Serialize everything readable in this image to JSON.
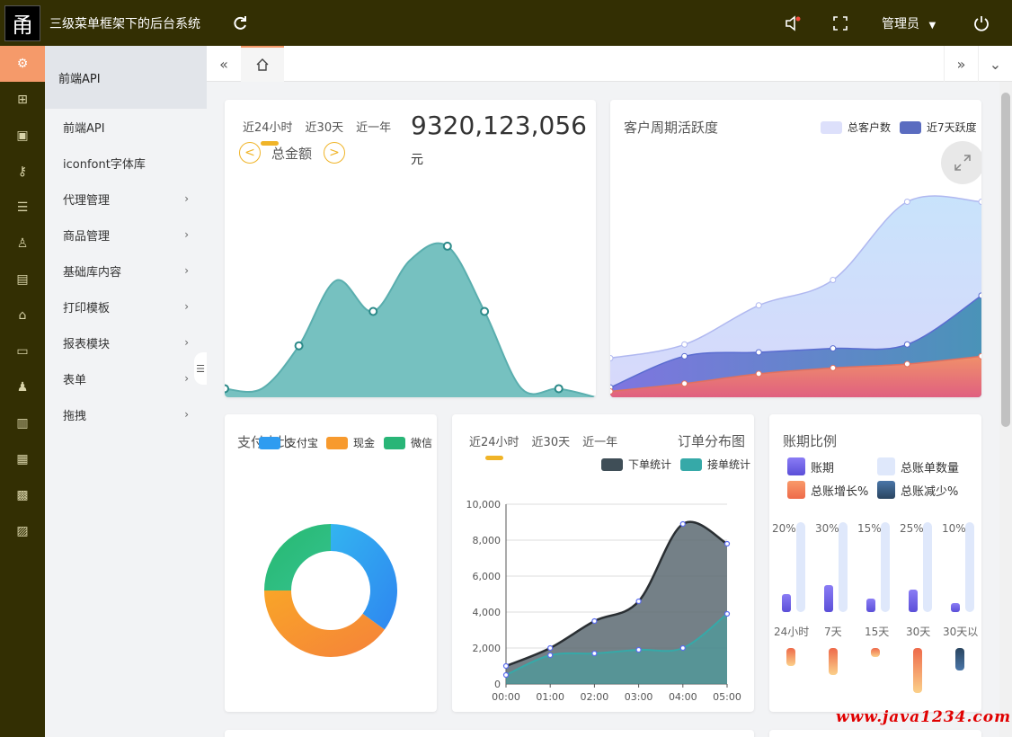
{
  "app": {
    "logo_char": "甬",
    "title": "三级菜单框架下的后台系统",
    "user": "管理员"
  },
  "top_icons": [
    "refresh-icon",
    "speaker-icon",
    "fullscreen-icon",
    "caret-down-icon",
    "power-icon"
  ],
  "iconbar": [
    "gear-icon",
    "sitemap-icon",
    "contact-icon",
    "key-icon",
    "layers-icon",
    "user-icon",
    "document-icon",
    "bank-icon",
    "wallet-icon",
    "people-icon",
    "inbox-icon",
    "chart-icon",
    "store-icon",
    "report-icon"
  ],
  "menu": {
    "header": "前端API",
    "items": [
      {
        "label": "前端API",
        "arrow": false
      },
      {
        "label": "iconfont字体库",
        "arrow": false
      },
      {
        "label": "代理管理",
        "arrow": true
      },
      {
        "label": "商品管理",
        "arrow": true
      },
      {
        "label": "基础库内容",
        "arrow": true
      },
      {
        "label": "打印模板",
        "arrow": true
      },
      {
        "label": "报表模块",
        "arrow": true
      },
      {
        "label": "表单",
        "arrow": true
      },
      {
        "label": "拖拽",
        "arrow": true
      }
    ]
  },
  "card1": {
    "range_tabs": [
      "近24小时",
      "近30天",
      "近一年"
    ],
    "value": "9320,123,056",
    "unit": "元",
    "label": "总金额"
  },
  "card2": {
    "title": "客户周期活跃度",
    "legend": [
      {
        "name": "总客户数",
        "color": "#dde0fb"
      },
      {
        "name": "近7天跃度",
        "color": "#5a6cc0"
      }
    ]
  },
  "card3": {
    "title": "支付占比",
    "legend": [
      {
        "name": "支付宝",
        "color": "#2f9cf0"
      },
      {
        "name": "现金",
        "color": "#f79a2e"
      },
      {
        "name": "微信",
        "color": "#29b577"
      }
    ]
  },
  "card4": {
    "range_tabs": [
      "近24小时",
      "近30天",
      "近一年"
    ],
    "title": "订单分布图",
    "legend": [
      {
        "name": "下单统计",
        "color": "#3f4e57"
      },
      {
        "name": "接单统计",
        "color": "#36a9a8"
      }
    ]
  },
  "card5": {
    "title": "账期比例",
    "legend": [
      {
        "name": "账期",
        "color": "#6d5fe8"
      },
      {
        "name": "总账单数量",
        "color": "#dfe8fb"
      },
      {
        "name": "总账增长%",
        "color": "#f5845c"
      },
      {
        "name": "总账减少%",
        "color": "#3a5f86"
      }
    ],
    "percent_labels": [
      "20%",
      "30%",
      "15%",
      "25%",
      "10%"
    ],
    "period_labels": [
      "24小时",
      "7天",
      "15天",
      "30天",
      "30天以"
    ]
  },
  "watermark": "www.java1234.com",
  "chart_data": [
    {
      "type": "area",
      "title": "",
      "x": [
        0,
        1,
        2,
        3,
        4,
        5,
        6,
        7,
        8,
        9,
        10
      ],
      "values": [
        5,
        5,
        30,
        68,
        50,
        80,
        88,
        50,
        5,
        5,
        0
      ],
      "ylim": [
        0,
        100
      ]
    },
    {
      "type": "area",
      "title": "客户周期活跃度",
      "x": [
        0,
        1,
        2,
        3,
        4,
        5
      ],
      "series": [
        {
          "name": "总客户数",
          "values": [
            20,
            27,
            47,
            60,
            100,
            100
          ]
        },
        {
          "name": "近7天跃度",
          "values": [
            5,
            21,
            23,
            25,
            27,
            52
          ]
        },
        {
          "name": "",
          "values": [
            3,
            7,
            12,
            15,
            17,
            21
          ]
        }
      ],
      "ylim": [
        0,
        120
      ]
    },
    {
      "type": "pie",
      "title": "支付占比",
      "categories": [
        "支付宝",
        "现金",
        "微信"
      ],
      "values": [
        35,
        40,
        25
      ]
    },
    {
      "type": "line",
      "title": "订单分布图",
      "categories": [
        "00:00",
        "01:00",
        "02:00",
        "03:00",
        "04:00",
        "05:00"
      ],
      "series": [
        {
          "name": "下单统计",
          "values": [
            1000,
            2000,
            3500,
            4600,
            8900,
            7800
          ]
        },
        {
          "name": "接单统计",
          "values": [
            500,
            1600,
            1700,
            1900,
            2000,
            3900
          ]
        }
      ],
      "ylim": [
        0,
        10000
      ],
      "yticks": [
        "0",
        "2,000",
        "4,000",
        "6,000",
        "8,000",
        "10,000"
      ]
    },
    {
      "type": "bar",
      "title": "账期比例",
      "categories": [
        "24小时",
        "7天",
        "15天",
        "30天",
        "30天以"
      ],
      "series": [
        {
          "name": "账期",
          "values": [
            20,
            30,
            15,
            25,
            10
          ]
        },
        {
          "name": "总账单数量",
          "values": [
            100,
            100,
            100,
            100,
            100
          ]
        },
        {
          "name": "总账增长%",
          "values": [
            20,
            30,
            10,
            50,
            0
          ]
        },
        {
          "name": "总账减少%",
          "values": [
            0,
            0,
            0,
            0,
            25
          ]
        }
      ]
    }
  ]
}
